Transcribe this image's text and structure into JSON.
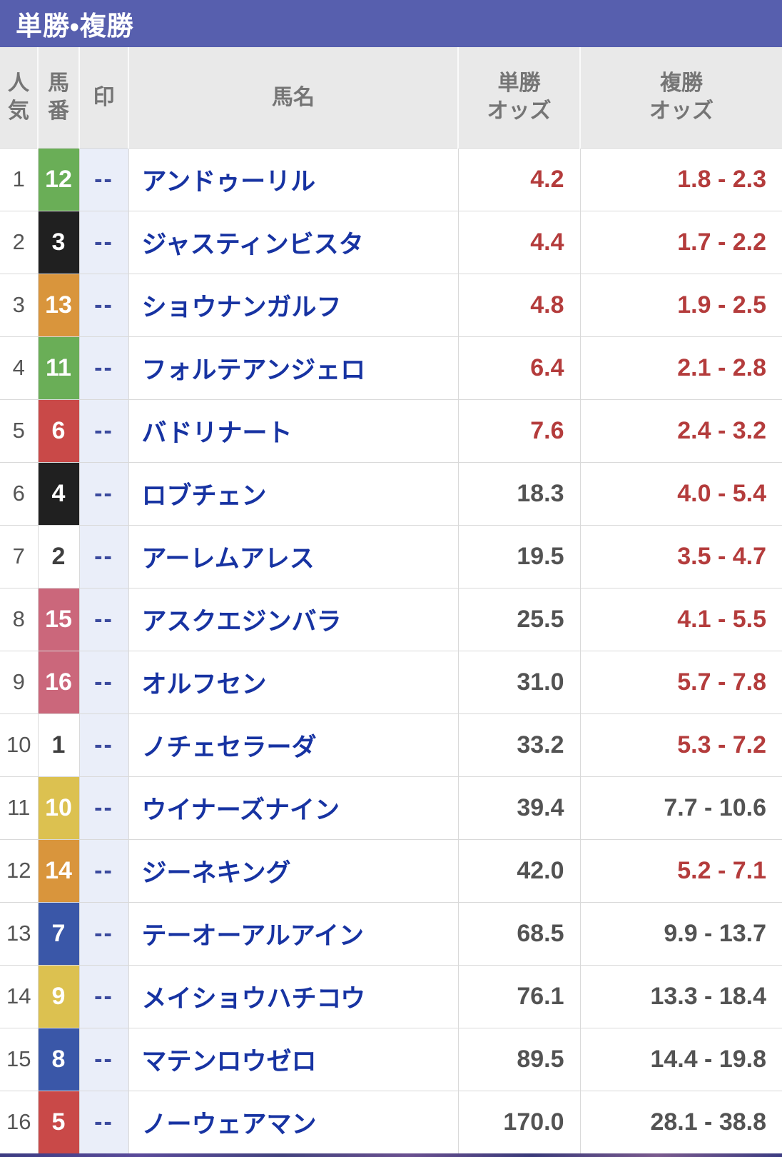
{
  "title_bar": {
    "label": "単勝・複勝"
  },
  "colors": {
    "title_bar_bg": "#575fae",
    "header_bg": "#e9e9e9",
    "grid_line": "#d9d9d9",
    "mark_cell_bg": "#eaeef9",
    "horse_name_blue": "#1733a2",
    "odds_hot_red": "#b43c3c",
    "odds_normal_gray": "#535353",
    "frame_colors": {
      "white": {
        "bg": "#ffffff",
        "fg": "#3f3f3f"
      },
      "black": {
        "bg": "#202020",
        "fg": "#ffffff"
      },
      "red": {
        "bg": "#c94948",
        "fg": "#ffffff"
      },
      "blue": {
        "bg": "#3a57a8",
        "fg": "#ffffff"
      },
      "yellow": {
        "bg": "#dcc150",
        "fg": "#ffffff"
      },
      "green": {
        "bg": "#6aae57",
        "fg": "#ffffff"
      },
      "orange": {
        "bg": "#d9953c",
        "fg": "#ffffff"
      },
      "pink": {
        "bg": "#cb677b",
        "fg": "#ffffff"
      }
    }
  },
  "table": {
    "headers": {
      "rank": "人気",
      "number": "馬番",
      "mark": "印",
      "name": "馬名",
      "win": "単勝\nオッズ",
      "place": "複勝\nオッズ"
    },
    "rows": [
      {
        "rank": "1",
        "number": "12",
        "frame": "green",
        "mark": "--",
        "name": "アンドゥーリル",
        "win": "4.2",
        "win_hot": true,
        "place": "1.8 - 2.3",
        "place_hot": true
      },
      {
        "rank": "2",
        "number": "3",
        "frame": "black",
        "mark": "--",
        "name": "ジャスティンビスタ",
        "win": "4.4",
        "win_hot": true,
        "place": "1.7 - 2.2",
        "place_hot": true
      },
      {
        "rank": "3",
        "number": "13",
        "frame": "orange",
        "mark": "--",
        "name": "ショウナンガルフ",
        "win": "4.8",
        "win_hot": true,
        "place": "1.9 - 2.5",
        "place_hot": true
      },
      {
        "rank": "4",
        "number": "11",
        "frame": "green",
        "mark": "--",
        "name": "フォルテアンジェロ",
        "win": "6.4",
        "win_hot": true,
        "place": "2.1 - 2.8",
        "place_hot": true
      },
      {
        "rank": "5",
        "number": "6",
        "frame": "red",
        "mark": "--",
        "name": "バドリナート",
        "win": "7.6",
        "win_hot": true,
        "place": "2.4 - 3.2",
        "place_hot": true
      },
      {
        "rank": "6",
        "number": "4",
        "frame": "black",
        "mark": "--",
        "name": "ロブチェン",
        "win": "18.3",
        "win_hot": false,
        "place": "4.0 - 5.4",
        "place_hot": true
      },
      {
        "rank": "7",
        "number": "2",
        "frame": "white",
        "mark": "--",
        "name": "アーレムアレス",
        "win": "19.5",
        "win_hot": false,
        "place": "3.5 - 4.7",
        "place_hot": true
      },
      {
        "rank": "8",
        "number": "15",
        "frame": "pink",
        "mark": "--",
        "name": "アスクエジンバラ",
        "win": "25.5",
        "win_hot": false,
        "place": "4.1 - 5.5",
        "place_hot": true
      },
      {
        "rank": "9",
        "number": "16",
        "frame": "pink",
        "mark": "--",
        "name": "オルフセン",
        "win": "31.0",
        "win_hot": false,
        "place": "5.7 - 7.8",
        "place_hot": true
      },
      {
        "rank": "10",
        "number": "1",
        "frame": "white",
        "mark": "--",
        "name": "ノチェセラーダ",
        "win": "33.2",
        "win_hot": false,
        "place": "5.3 - 7.2",
        "place_hot": true
      },
      {
        "rank": "11",
        "number": "10",
        "frame": "yellow",
        "mark": "--",
        "name": "ウイナーズナイン",
        "win": "39.4",
        "win_hot": false,
        "place": "7.7 - 10.6",
        "place_hot": false
      },
      {
        "rank": "12",
        "number": "14",
        "frame": "orange",
        "mark": "--",
        "name": "ジーネキング",
        "win": "42.0",
        "win_hot": false,
        "place": "5.2 - 7.1",
        "place_hot": true
      },
      {
        "rank": "13",
        "number": "7",
        "frame": "blue",
        "mark": "--",
        "name": "テーオーアルアイン",
        "win": "68.5",
        "win_hot": false,
        "place": "9.9 - 13.7",
        "place_hot": false
      },
      {
        "rank": "14",
        "number": "9",
        "frame": "yellow",
        "mark": "--",
        "name": "メイショウハチコウ",
        "win": "76.1",
        "win_hot": false,
        "place": "13.3 - 18.4",
        "place_hot": false
      },
      {
        "rank": "15",
        "number": "8",
        "frame": "blue",
        "mark": "--",
        "name": "マテンロウゼロ",
        "win": "89.5",
        "win_hot": false,
        "place": "14.4 - 19.8",
        "place_hot": false
      },
      {
        "rank": "16",
        "number": "5",
        "frame": "red",
        "mark": "--",
        "name": "ノーウェアマン",
        "win": "170.0",
        "win_hot": false,
        "place": "28.1 - 38.8",
        "place_hot": false
      }
    ]
  }
}
